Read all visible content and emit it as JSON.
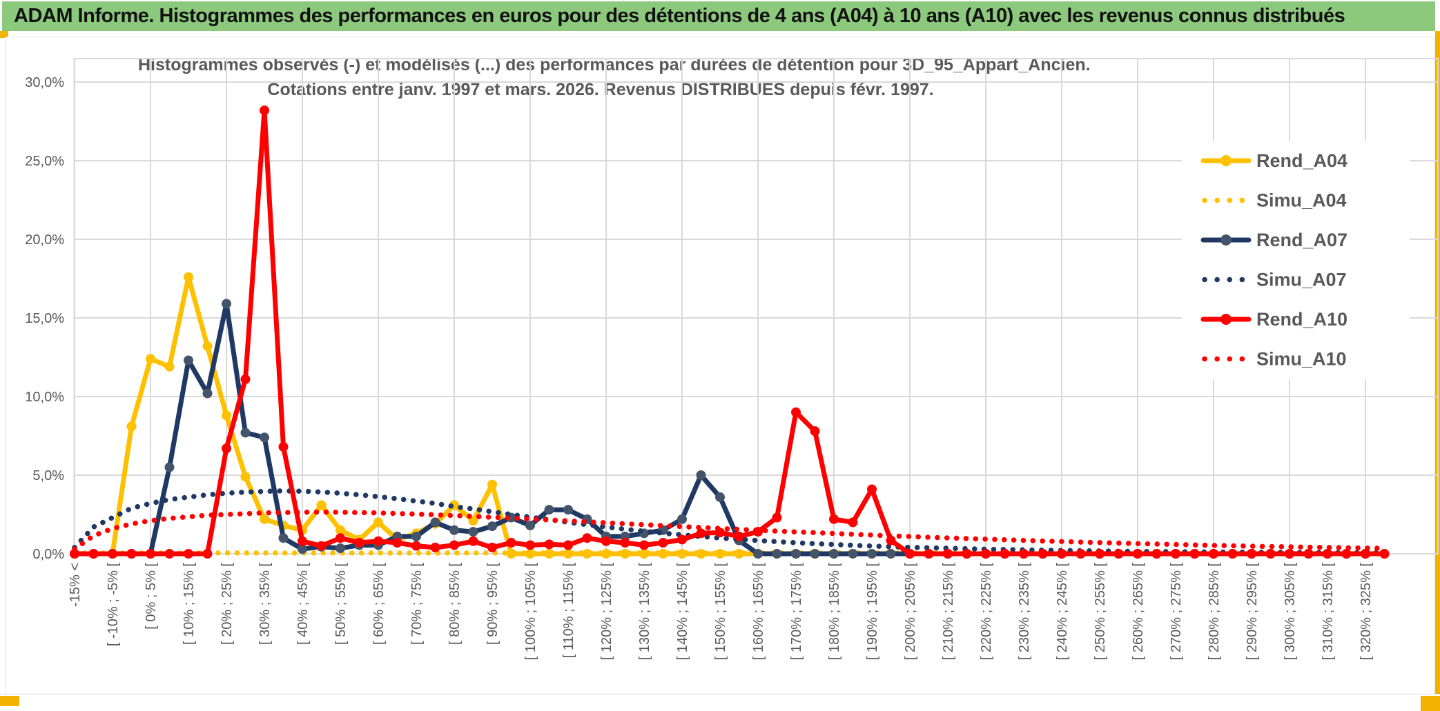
{
  "page": {
    "title": "ADAM Informe. Histogrammes des performances en euros pour des détentions de 4 ans (A04) à 10 ans (A10) avec les revenus connus distribués"
  },
  "chart": {
    "subtitle_line1": "Histogrammes observés (-) et modélisés (...) des performances par durées de détention pour 3D_95_Appart_Ancien.",
    "subtitle_line2": "Cotations entre janv. 1997 et mars. 2026. Revenus DISTRIBUES depuis févr. 1997.",
    "y_axis_ticks": [
      "30,0%",
      "25,0%",
      "20,0%",
      "15,0%",
      "10,0%",
      "5,0%",
      "0,0%"
    ]
  },
  "colors": {
    "header_bg": "#8dc97d",
    "frame_yellow": "#f2b200",
    "gold": "#FFC000",
    "navy": "#1F3864",
    "navy_marker": "#44546A",
    "red": "#FF0000",
    "text_gray": "#595959",
    "grid": "#D9D9D9"
  },
  "chart_data": {
    "type": "line",
    "title": "Histogrammes observés (-) et modélisés (...) des performances par durées de détention pour 3D_95_Appart_Ancien. Cotations entre janv. 1997 et mars. 2026. Revenus DISTRIBUES depuis févr. 1997.",
    "xlabel": "",
    "ylabel": "",
    "ylim": [
      0,
      30
    ],
    "y_tick_step_pct": 5,
    "grid": true,
    "legend_position": "right",
    "bin_width_pct": 5,
    "x_label_every_bins": 2,
    "x_tick_labels": [
      "-15% <",
      "[ -10% ; -5% [",
      "[ 0% ; 5% [",
      "[ 10% ; 15% [",
      "[ 20% ; 25% [",
      "[ 30% ; 35% [",
      "[ 40% ; 45% [",
      "[ 50% ; 55% [",
      "[ 60% ; 65% [",
      "[ 70% ; 75% [",
      "[ 80% ; 85% [",
      "[ 90% ; 95% [",
      "[ 100% ; 105% [",
      "[ 110% ; 115% [",
      "[ 120% ; 125% [",
      "[ 130% ; 135% [",
      "[ 140% ; 145% [",
      "[ 150% ; 155% [",
      "[ 160% ; 165% [",
      "[ 170% ; 175% [",
      "[ 180% ; 185% [",
      "[ 190% ; 195% [",
      "[ 200% ; 205% [",
      "[ 210% ; 215% [",
      "[ 220% ; 225% [",
      "[ 230% ; 235% [",
      "[ 240% ; 245% [",
      "[ 250% ; 255% [",
      "[ 260% ; 265% [",
      "[ 270% ; 275% [",
      "[ 280% ; 285% [",
      "[ 290% ; 295% [",
      "[ 300% ; 305% [",
      "[ 310% ; 315% [",
      "[ 320% ; 325% ["
    ],
    "series": [
      {
        "name": "Rend_A04",
        "style": "solid",
        "color": "#FFC000",
        "marker": "#FFC000",
        "values": [
          0,
          0,
          0,
          8.1,
          12.4,
          11.9,
          17.6,
          13.2,
          8.8,
          4.9,
          2.2,
          1.8,
          1.5,
          3.1,
          1.5,
          0.9,
          2.0,
          0.9,
          1.3,
          1.9,
          3.1,
          2.1,
          4.4,
          0,
          0,
          0,
          0,
          0,
          0,
          0,
          0,
          0,
          0,
          0,
          0,
          0,
          0,
          0,
          0,
          0,
          0,
          0,
          0,
          0,
          0,
          0,
          0,
          0,
          0,
          0,
          0,
          0,
          0,
          0,
          0,
          0,
          0,
          0,
          0,
          0,
          0,
          0,
          0,
          0,
          0,
          0,
          0,
          0,
          0,
          0
        ]
      },
      {
        "name": "Simu_A04",
        "style": "dotted",
        "color": "#FFC000",
        "values": [
          0.05,
          0.05,
          0.05,
          0.05,
          0.05,
          0.05,
          0.05,
          0.05,
          0.05,
          0.05,
          0.05,
          0.05,
          0.05,
          0.05,
          0.05,
          0.05,
          0.05,
          0.05,
          0.05,
          0.05,
          0.05,
          0.05,
          0.05,
          0.05,
          0.05,
          0.05,
          0.05,
          0.05,
          0.05,
          0.05,
          0.05,
          0.05,
          0.05,
          0.05,
          0.05,
          0.05,
          0.05,
          0.05,
          0.05,
          0.05,
          0.05,
          0.05,
          0.05,
          0.05,
          0.05,
          0.05,
          0.05,
          0.05,
          0.05,
          0.05,
          0.05,
          0.05,
          0.05,
          0.05,
          0.05,
          0.05,
          0.05,
          0.05,
          0.05,
          0.05,
          0.05,
          0.05,
          0.05,
          0.05,
          0.05,
          0.05,
          0.05,
          0.05,
          0.05,
          0.05
        ]
      },
      {
        "name": "Rend_A07",
        "style": "solid",
        "color": "#1F3864",
        "marker": "#44546A",
        "values": [
          0,
          0,
          0,
          0,
          0,
          5.5,
          12.3,
          10.2,
          15.9,
          7.7,
          7.4,
          1.0,
          0.3,
          0.45,
          0.35,
          0.55,
          0.55,
          1.1,
          1.1,
          2.0,
          1.5,
          1.4,
          1.75,
          2.3,
          1.8,
          2.8,
          2.8,
          2.2,
          1.1,
          1.1,
          1.3,
          1.5,
          2.2,
          5.0,
          3.6,
          0.85,
          0,
          0,
          0,
          0,
          0,
          0,
          0,
          0,
          0,
          0,
          0,
          0,
          0,
          0,
          0,
          0,
          0,
          0,
          0,
          0,
          0,
          0,
          0,
          0,
          0,
          0,
          0,
          0,
          0,
          0,
          0,
          0,
          0,
          0
        ]
      },
      {
        "name": "Simu_A07",
        "style": "dotted",
        "color": "#1F3864",
        "values": [
          0.4,
          1.7,
          2.3,
          2.9,
          3.2,
          3.45,
          3.6,
          3.75,
          3.85,
          3.92,
          3.97,
          4.0,
          3.98,
          3.93,
          3.85,
          3.75,
          3.63,
          3.5,
          3.35,
          3.2,
          3.0,
          2.85,
          2.67,
          2.5,
          2.33,
          2.17,
          2.0,
          1.85,
          1.7,
          1.56,
          1.43,
          1.31,
          1.2,
          1.1,
          1.0,
          0.92,
          0.84,
          0.77,
          0.7,
          0.64,
          0.59,
          0.54,
          0.49,
          0.45,
          0.41,
          0.38,
          0.35,
          0.32,
          0.29,
          0.27,
          0.25,
          0.23,
          0.21,
          0.19,
          0.18,
          0.16,
          0.15,
          0.14,
          0.13,
          0.12,
          0.11,
          0.1,
          0.09,
          0.09,
          0.08,
          0.08,
          0.07,
          0.07,
          0.06,
          0.06
        ]
      },
      {
        "name": "Rend_A10",
        "style": "solid",
        "color": "#FF0000",
        "marker": "#FF0000",
        "values": [
          0,
          0,
          0,
          0,
          0,
          0,
          0,
          0,
          6.7,
          11.1,
          28.2,
          6.8,
          0.8,
          0.5,
          1.0,
          0.7,
          0.8,
          0.7,
          0.5,
          0.4,
          0.55,
          0.8,
          0.4,
          0.7,
          0.55,
          0.6,
          0.55,
          1.0,
          0.8,
          0.7,
          0.55,
          0.7,
          0.9,
          1.3,
          1.35,
          1.1,
          1.4,
          2.3,
          9.0,
          7.8,
          2.2,
          2.0,
          4.1,
          0.85,
          0,
          0,
          0,
          0,
          0,
          0,
          0,
          0,
          0,
          0,
          0,
          0,
          0,
          0,
          0,
          0,
          0,
          0,
          0,
          0,
          0,
          0,
          0,
          0,
          0,
          0
        ]
      },
      {
        "name": "Simu_A10",
        "style": "dotted",
        "color": "#FF0000",
        "values": [
          0.3,
          1.15,
          1.6,
          1.9,
          2.1,
          2.25,
          2.35,
          2.45,
          2.5,
          2.55,
          2.6,
          2.62,
          2.64,
          2.65,
          2.64,
          2.62,
          2.6,
          2.56,
          2.52,
          2.48,
          2.43,
          2.38,
          2.32,
          2.27,
          2.21,
          2.15,
          2.09,
          2.03,
          1.97,
          1.91,
          1.85,
          1.79,
          1.73,
          1.67,
          1.61,
          1.55,
          1.5,
          1.44,
          1.39,
          1.34,
          1.29,
          1.24,
          1.19,
          1.14,
          1.1,
          1.05,
          1.01,
          0.97,
          0.93,
          0.89,
          0.85,
          0.81,
          0.78,
          0.74,
          0.71,
          0.68,
          0.65,
          0.62,
          0.59,
          0.56,
          0.53,
          0.51,
          0.48,
          0.46,
          0.44,
          0.42,
          0.4,
          0.38,
          0.36,
          0.34
        ]
      }
    ],
    "legend": [
      "Rend_A04",
      "Simu_A04",
      "Rend_A07",
      "Simu_A07",
      "Rend_A10",
      "Simu_A10"
    ]
  }
}
